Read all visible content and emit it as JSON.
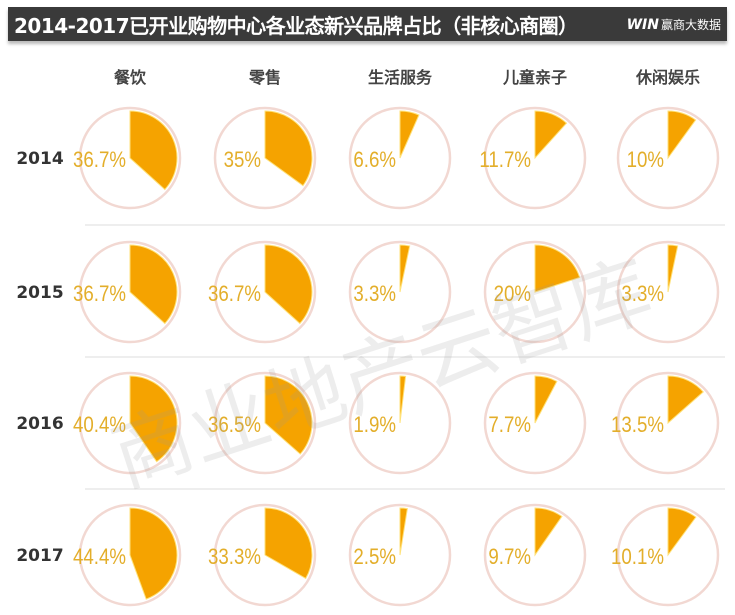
{
  "title": "2014-2017已开业购物中心各业态新兴品牌占比（非核心商圈）",
  "brand": {
    "logo": "WIN",
    "name": "赢商大数据"
  },
  "watermark": "商业地产云智库",
  "colors": {
    "wedge": "#F5A300",
    "label": "#E3AE2A",
    "ring": "#F2D8D2",
    "bar": "#3a3a3a"
  },
  "chart_data": {
    "type": "pie",
    "title": "2014-2017已开业购物中心各业态新兴品牌占比（非核心商圈）",
    "categories": [
      "餐饮",
      "零售",
      "生活服务",
      "儿童亲子",
      "休闲娱乐"
    ],
    "years": [
      "2014",
      "2015",
      "2016",
      "2017"
    ],
    "values": [
      [
        36.7,
        35,
        6.6,
        11.7,
        10
      ],
      [
        36.7,
        36.7,
        3.3,
        20,
        3.3
      ],
      [
        40.4,
        36.5,
        1.9,
        7.7,
        13.5
      ],
      [
        44.4,
        33.3,
        2.5,
        9.7,
        10.1
      ]
    ],
    "labels": [
      [
        "36.7%",
        "35%",
        "6.6%",
        "11.7%",
        "10%"
      ],
      [
        "36.7%",
        "36.7%",
        "3.3%",
        "20%",
        "3.3%"
      ],
      [
        "40.4%",
        "36.5%",
        "1.9%",
        "7.7%",
        "13.5%"
      ],
      [
        "44.4%",
        "33.3%",
        "2.5%",
        "9.7%",
        "10.1%"
      ]
    ]
  }
}
